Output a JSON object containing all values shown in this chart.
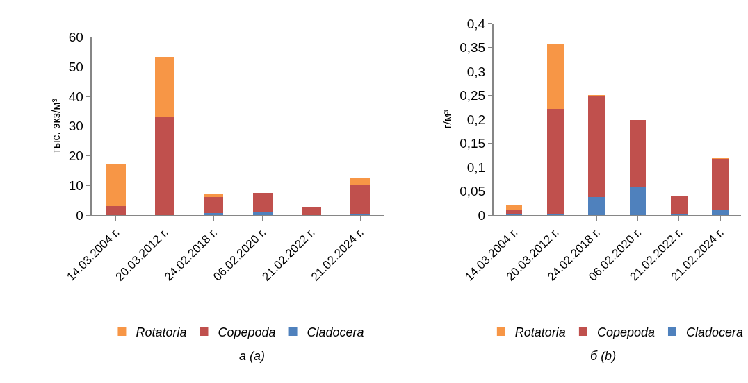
{
  "chart_data": [
    {
      "type": "bar",
      "stacked": true,
      "ylabel": "тыс. экз/м³",
      "categories": [
        "14.03.2004 г.",
        "20.03.2012 г.",
        "24.02.2018 г.",
        "06.02.2020 г.",
        "21.02.2022 г.",
        "21.02.2024 г."
      ],
      "series": [
        {
          "name": "Cladocera",
          "color": "#4f81bd",
          "values": [
            0.1,
            0.1,
            0.7,
            1.2,
            0.1,
            0.3
          ]
        },
        {
          "name": "Copepoda",
          "color": "#c0504d",
          "values": [
            2.9,
            32.9,
            5.4,
            6.3,
            2.4,
            10.1
          ]
        },
        {
          "name": "Rotatoria",
          "color": "#f79646",
          "values": [
            14,
            20.4,
            1,
            0,
            0,
            2.1
          ]
        }
      ],
      "ylim": [
        0,
        60
      ],
      "yticks": [
        0,
        10,
        20,
        30,
        40,
        50,
        60
      ],
      "legend": "bottom",
      "annotations": [
        "а (a)"
      ]
    },
    {
      "type": "bar",
      "stacked": true,
      "ylabel": "г/м³",
      "categories": [
        "14.03.2004 г.",
        "20.03.2012 г.",
        "24.02.2018 г.",
        "06.02.2020 г.",
        "21.02.2022 г.",
        "21.02.2024 г."
      ],
      "series": [
        {
          "name": "Cladocera",
          "color": "#4f81bd",
          "values": [
            0.001,
            0.001,
            0.038,
            0.058,
            0.002,
            0.01
          ]
        },
        {
          "name": "Copepoda",
          "color": "#c0504d",
          "values": [
            0.01,
            0.22,
            0.211,
            0.141,
            0.038,
            0.107
          ]
        },
        {
          "name": "Rotatoria",
          "color": "#f79646",
          "values": [
            0.01,
            0.135,
            0.001,
            0,
            0,
            0.003
          ]
        }
      ],
      "ylim": [
        0,
        0.4
      ],
      "yticks": [
        0,
        {
          "value": 0.05,
          "label": "0,05"
        },
        {
          "value": 0.1,
          "label": "0,1"
        },
        {
          "value": 0.15,
          "label": "0,15"
        },
        {
          "value": 0.2,
          "label": "0,2"
        },
        {
          "value": 0.25,
          "label": "0,25"
        },
        {
          "value": 0.3,
          "label": "0,3"
        },
        {
          "value": 0.35,
          "label": "0,35"
        },
        {
          "value": 0.4,
          "label": "0,4"
        }
      ],
      "legend": "bottom",
      "annotations": [
        "б (b)"
      ]
    }
  ]
}
